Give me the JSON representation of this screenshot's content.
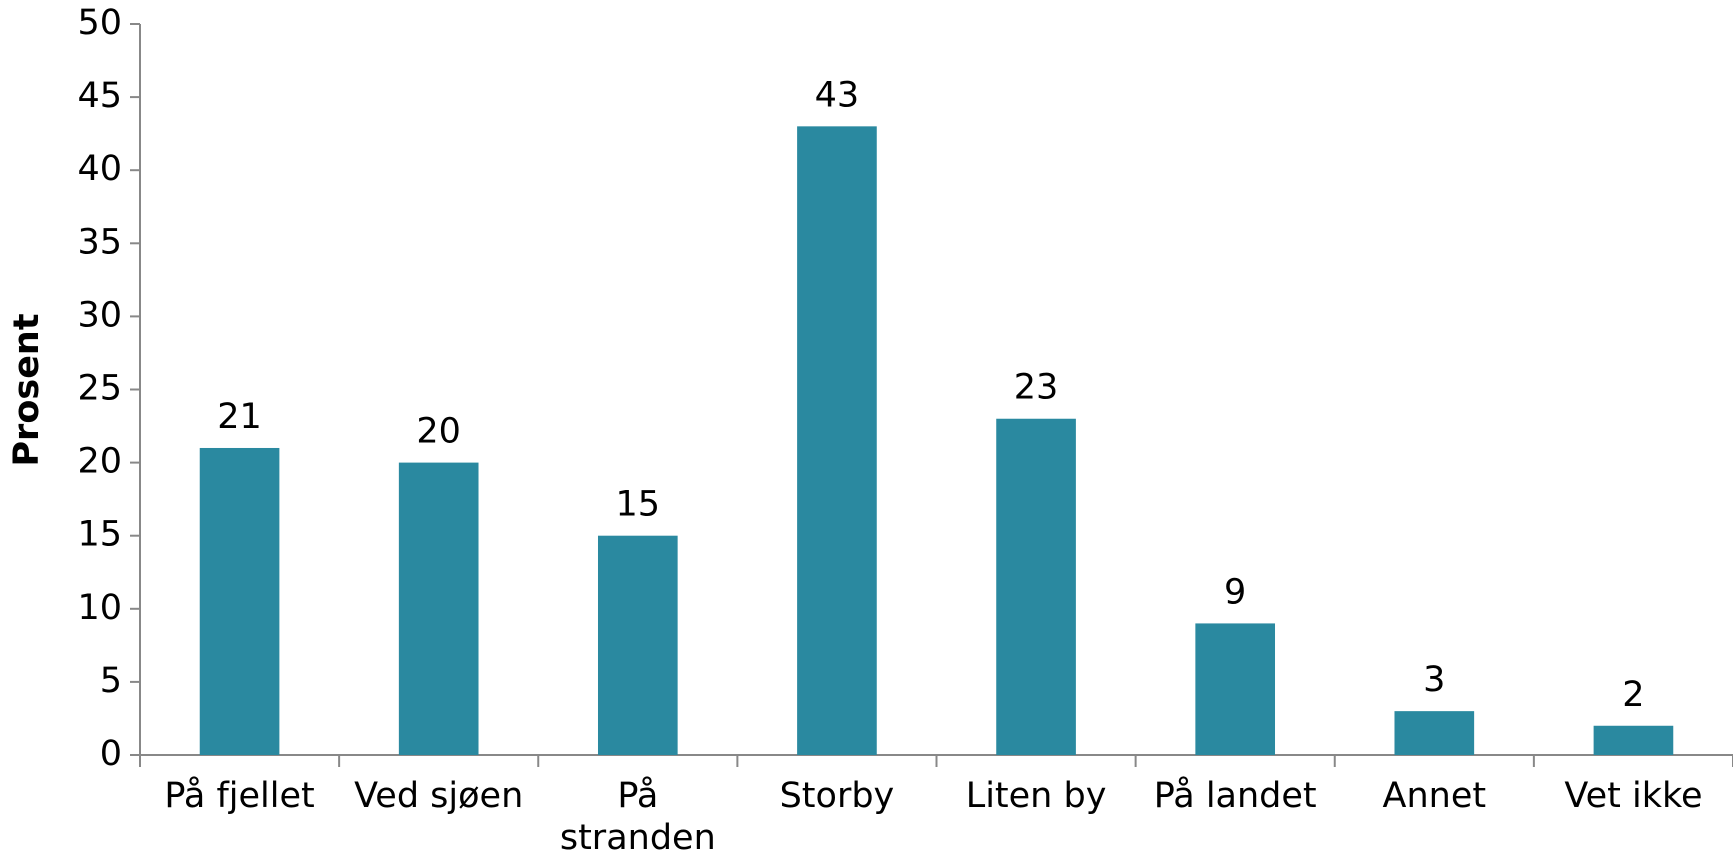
{
  "chart_data": {
    "type": "bar",
    "y_label": "Prosent",
    "categories": [
      "På fjellet",
      "Ved sjøen",
      "På stranden",
      "Storby",
      "Liten by",
      "På landet",
      "Annet",
      "Vet ikke"
    ],
    "values": [
      21,
      20,
      15,
      43,
      23,
      9,
      3,
      2
    ],
    "color": "#2a89a0",
    "ylim": [
      0,
      50
    ],
    "yticks": [
      0,
      5,
      10,
      15,
      20,
      25,
      30,
      35,
      40,
      45,
      50
    ],
    "grid": false
  }
}
